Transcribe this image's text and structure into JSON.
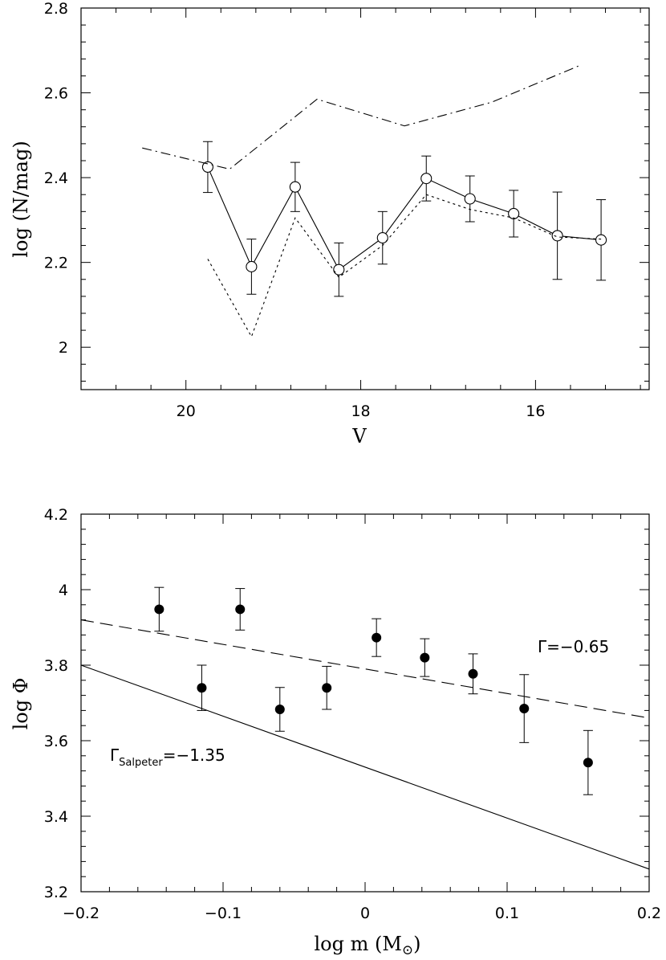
{
  "chart_data": [
    {
      "type": "line",
      "xlabel": "V",
      "ylabel": "log (N/mag)",
      "xlim": [
        21.2,
        14.7
      ],
      "ylim": [
        1.9,
        2.8
      ],
      "x_ticks": [
        20,
        18,
        16
      ],
      "y_ticks": [
        2,
        2.2,
        2.4,
        2.6,
        2.8
      ],
      "x_tick_labels": [
        "20",
        "18",
        "16"
      ],
      "y_tick_labels": [
        "2",
        "2.2",
        "2.4",
        "2.6",
        "2.8"
      ],
      "series": [
        {
          "style": "solid-open-circles",
          "x": [
            19.75,
            19.25,
            18.75,
            18.25,
            17.75,
            17.25,
            16.75,
            16.25,
            15.75,
            15.25
          ],
          "y": [
            2.425,
            2.19,
            2.378,
            2.183,
            2.258,
            2.398,
            2.35,
            2.315,
            2.263,
            2.253
          ],
          "err": [
            0.06,
            0.065,
            0.058,
            0.063,
            0.062,
            0.053,
            0.054,
            0.055,
            0.103,
            0.095
          ]
        },
        {
          "style": "dotted",
          "x": [
            19.75,
            19.25,
            18.75,
            18.25,
            17.75,
            17.25,
            16.75,
            16.25,
            15.75,
            15.25
          ],
          "y": [
            2.208,
            2.025,
            2.305,
            2.165,
            2.24,
            2.36,
            2.325,
            2.305,
            2.26,
            2.255
          ]
        },
        {
          "style": "dash-dot",
          "x": [
            20.5,
            19.5,
            18.5,
            17.5,
            16.5,
            15.5
          ],
          "y": [
            2.47,
            2.42,
            2.585,
            2.522,
            2.578,
            2.664
          ]
        }
      ]
    },
    {
      "type": "scatter",
      "xlabel": "log m (M",
      "xlabel_suffix": ")",
      "xlabel_symbol": "sun-symbol",
      "ylabel": "log Φ",
      "xlim": [
        -0.2,
        0.2
      ],
      "ylim": [
        3.2,
        4.2
      ],
      "x_ticks": [
        -0.2,
        -0.1,
        0,
        0.1,
        0.2
      ],
      "y_ticks": [
        3.2,
        3.4,
        3.6,
        3.8,
        4,
        4.2
      ],
      "x_tick_labels": [
        "−0.2",
        "−0.1",
        "0",
        "0.1",
        "0.2"
      ],
      "y_tick_labels": [
        "3.2",
        "3.4",
        "3.6",
        "3.8",
        "4",
        "4.2"
      ],
      "points": {
        "x": [
          -0.145,
          -0.115,
          -0.088,
          -0.06,
          -0.027,
          0.008,
          0.042,
          0.076,
          0.112,
          0.157
        ],
        "y": [
          3.948,
          3.74,
          3.948,
          3.683,
          3.74,
          3.873,
          3.82,
          3.777,
          3.685,
          3.542
        ],
        "err": [
          0.058,
          0.06,
          0.055,
          0.058,
          0.057,
          0.05,
          0.05,
          0.053,
          0.09,
          0.085
        ]
      },
      "lines": [
        {
          "style": "dashed",
          "x": [
            -0.2,
            0.2
          ],
          "y": [
            3.92,
            3.66
          ],
          "label": "Γ=−0.65"
        },
        {
          "style": "solid",
          "x": [
            -0.2,
            0.2
          ],
          "y": [
            3.8,
            3.26
          ],
          "label_main": "Γ",
          "label_sub": "Salpeter",
          "label_tail": "=−1.35"
        }
      ]
    }
  ]
}
